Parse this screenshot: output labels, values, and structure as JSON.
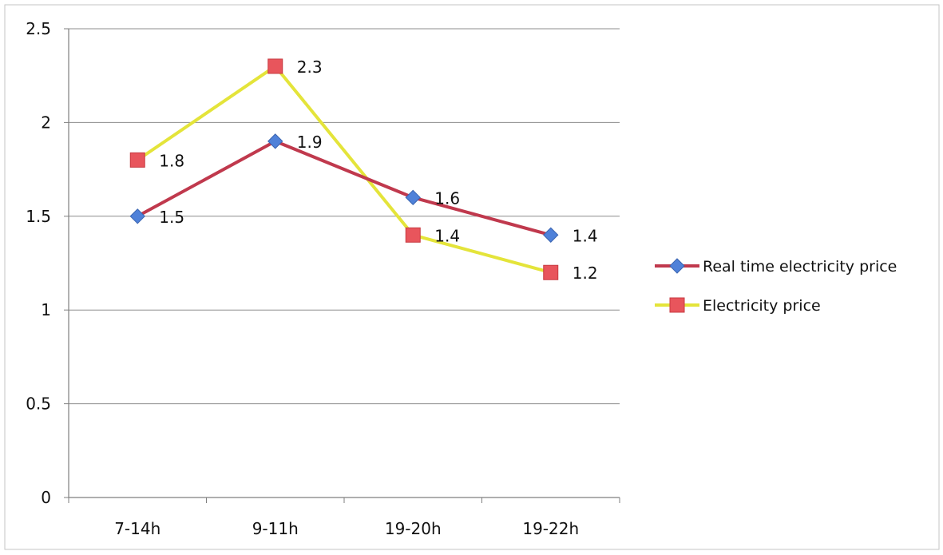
{
  "chart_data": {
    "type": "line",
    "categories": [
      "7-14h",
      "9-11h",
      "19-20h",
      "19-22h"
    ],
    "series": [
      {
        "name": "Real time electricity price",
        "values": [
          1.5,
          1.9,
          1.6,
          1.4
        ],
        "labels": [
          "1.5",
          "1.9",
          "1.6",
          "1.4"
        ],
        "line_color": "#c0394d",
        "marker": "diamond",
        "marker_color": "#4f81d9"
      },
      {
        "name": "Electricity price",
        "values": [
          1.8,
          2.3,
          1.4,
          1.2
        ],
        "labels": [
          "1.8",
          "2.3",
          "1.4",
          "1.2"
        ],
        "line_color": "#e4e43a",
        "marker": "square",
        "marker_color": "#e8555c"
      }
    ],
    "ylim": [
      0,
      2.5
    ],
    "yticks": [
      0,
      0.5,
      1,
      1.5,
      2,
      2.5
    ],
    "ytick_labels": [
      "0",
      "0.5",
      "1",
      "1.5",
      "2",
      "2.5"
    ],
    "grid": true,
    "legend_position": "right",
    "gridline_color": "#8c8c8c",
    "axis_color": "#7f7f7f"
  }
}
